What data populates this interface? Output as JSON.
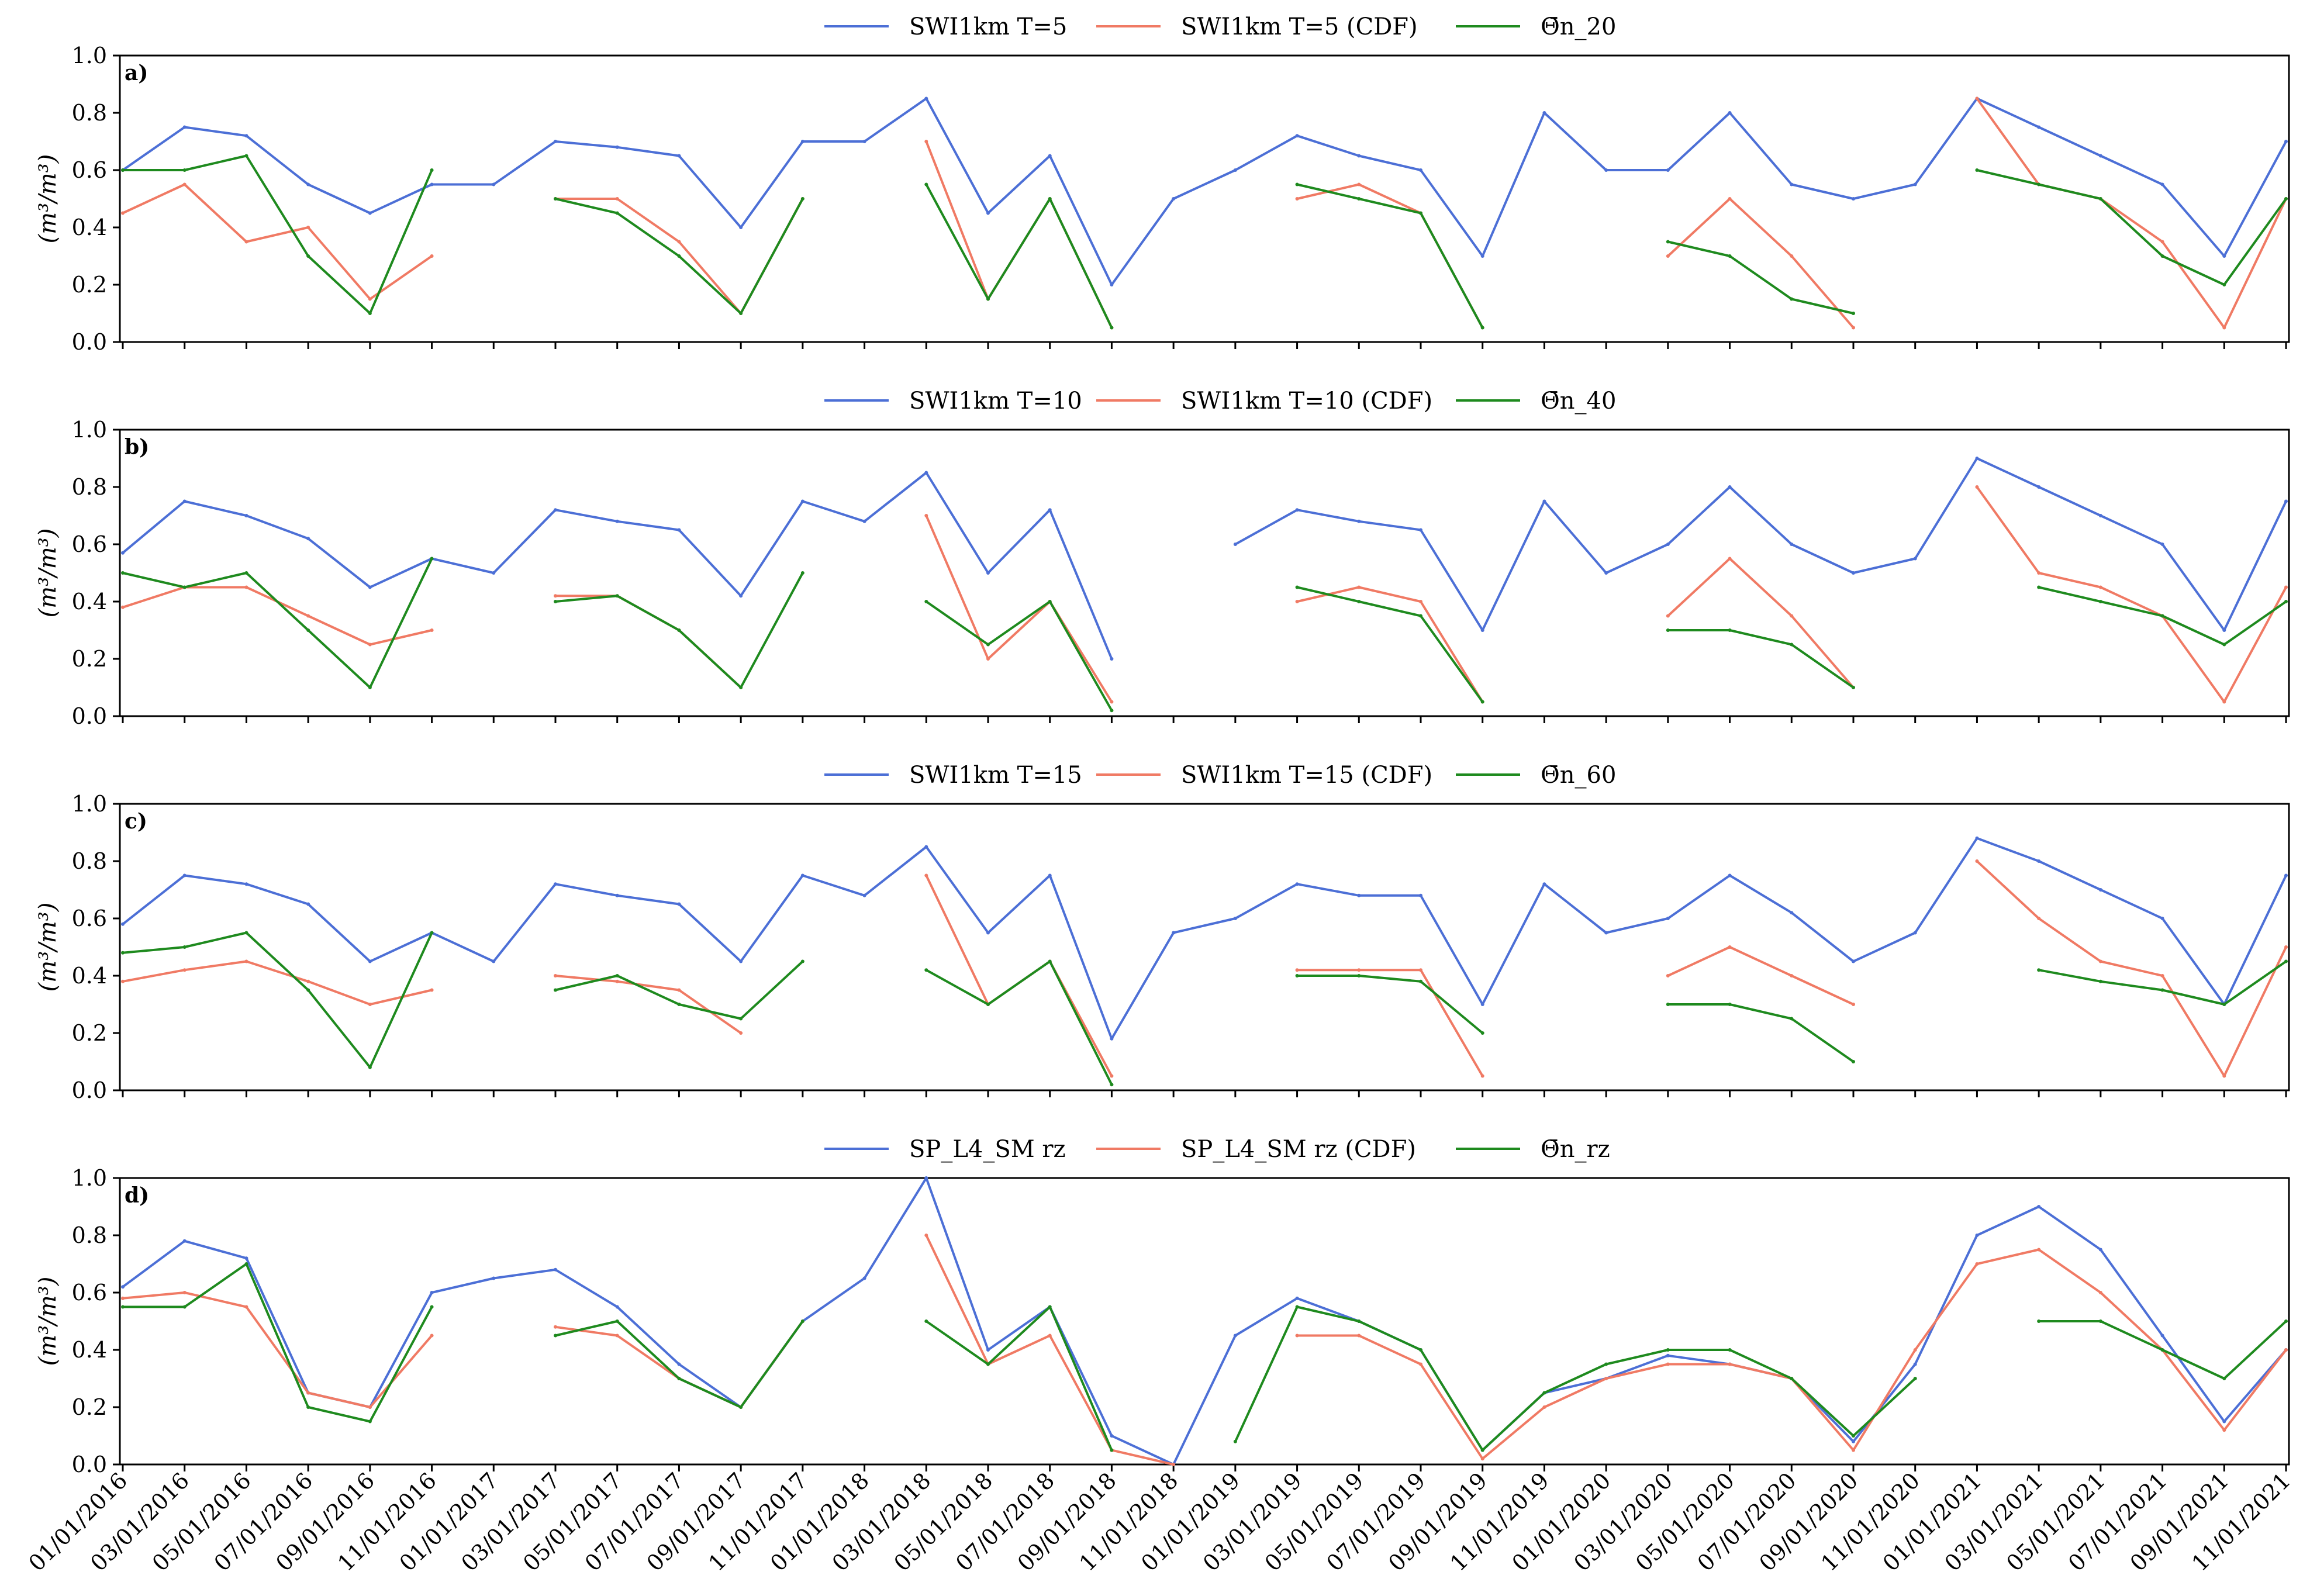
{
  "chart_data": [
    {
      "type": "line",
      "panel": "a)",
      "ylabel": "(m³/m³)",
      "ylim": [
        0.0,
        1.0
      ],
      "yticks": [
        "0.0",
        "0.2",
        "0.4",
        "0.6",
        "0.8",
        "1.0"
      ],
      "legend": [
        "SWI1km T=5",
        "SWI1km T=5 (CDF)",
        "Θ̄n_20"
      ],
      "x": [
        "2016-01",
        "2016-03",
        "2016-05",
        "2016-07",
        "2016-09",
        "2016-11",
        "2017-01",
        "2017-03",
        "2017-05",
        "2017-07",
        "2017-09",
        "2017-11",
        "2018-01",
        "2018-03",
        "2018-05",
        "2018-07",
        "2018-09",
        "2018-11",
        "2019-01",
        "2019-03",
        "2019-05",
        "2019-07",
        "2019-09",
        "2019-11",
        "2020-01",
        "2020-03",
        "2020-05",
        "2020-07",
        "2020-09",
        "2020-11",
        "2021-01",
        "2021-03",
        "2021-05",
        "2021-07",
        "2021-09",
        "2021-11"
      ],
      "series": [
        {
          "name": "SWI1km T=5",
          "color": "#4c6fd6",
          "values": [
            0.6,
            0.75,
            0.72,
            0.55,
            0.45,
            0.55,
            0.55,
            0.7,
            0.68,
            0.65,
            0.4,
            0.7,
            0.7,
            0.85,
            0.45,
            0.65,
            0.2,
            0.5,
            0.6,
            0.72,
            0.65,
            0.6,
            0.3,
            0.8,
            0.6,
            0.6,
            0.8,
            0.55,
            0.5,
            0.55,
            0.85,
            0.75,
            0.65,
            0.55,
            0.3,
            0.7
          ]
        },
        {
          "name": "SWI1km T=5 (CDF)",
          "color": "#f07a64",
          "values": [
            0.45,
            0.55,
            0.35,
            0.4,
            0.15,
            0.3,
            null,
            0.5,
            0.5,
            0.35,
            0.1,
            0.5,
            null,
            0.7,
            0.15,
            0.5,
            0.05,
            null,
            null,
            0.5,
            0.55,
            0.45,
            0.05,
            null,
            null,
            0.3,
            0.5,
            0.3,
            0.05,
            null,
            0.85,
            0.55,
            0.5,
            0.35,
            0.05,
            0.5
          ]
        },
        {
          "name": "Θ̄n_20",
          "color": "#1e8a1e",
          "values": [
            0.6,
            0.6,
            0.65,
            0.3,
            0.1,
            0.6,
            null,
            0.5,
            0.45,
            0.3,
            0.1,
            0.5,
            null,
            0.55,
            0.15,
            0.5,
            0.05,
            null,
            null,
            0.55,
            0.5,
            0.45,
            0.05,
            null,
            null,
            0.35,
            0.3,
            0.15,
            0.1,
            null,
            0.6,
            0.55,
            0.5,
            0.3,
            0.2,
            0.5
          ]
        }
      ]
    },
    {
      "type": "line",
      "panel": "b)",
      "ylabel": "(m³/m³)",
      "ylim": [
        0.0,
        1.0
      ],
      "yticks": [
        "0.0",
        "0.2",
        "0.4",
        "0.6",
        "0.8",
        "1.0"
      ],
      "legend": [
        "SWI1km T=10",
        "SWI1km T=10 (CDF)",
        "Θ̄n_40"
      ],
      "x": [
        "2016-01",
        "2016-03",
        "2016-05",
        "2016-07",
        "2016-09",
        "2016-11",
        "2017-01",
        "2017-03",
        "2017-05",
        "2017-07",
        "2017-09",
        "2017-11",
        "2018-01",
        "2018-03",
        "2018-05",
        "2018-07",
        "2018-09",
        "2018-11",
        "2019-01",
        "2019-03",
        "2019-05",
        "2019-07",
        "2019-09",
        "2019-11",
        "2020-01",
        "2020-03",
        "2020-05",
        "2020-07",
        "2020-09",
        "2020-11",
        "2021-01",
        "2021-03",
        "2021-05",
        "2021-07",
        "2021-09",
        "2021-11"
      ],
      "series": [
        {
          "name": "SWI1km T=10",
          "color": "#4c6fd6",
          "values": [
            0.57,
            0.75,
            0.7,
            0.62,
            0.45,
            0.55,
            0.5,
            0.72,
            0.68,
            0.65,
            0.42,
            0.75,
            0.68,
            0.85,
            0.5,
            0.72,
            0.2,
            null,
            0.6,
            0.72,
            0.68,
            0.65,
            0.3,
            0.75,
            0.5,
            0.6,
            0.8,
            0.6,
            0.5,
            0.55,
            0.9,
            0.8,
            0.7,
            0.6,
            0.3,
            0.75
          ]
        },
        {
          "name": "SWI1km T=10 (CDF)",
          "color": "#f07a64",
          "values": [
            0.38,
            0.45,
            0.45,
            0.35,
            0.25,
            0.3,
            null,
            0.42,
            0.42,
            0.3,
            0.1,
            null,
            null,
            0.7,
            0.2,
            0.4,
            0.05,
            null,
            null,
            0.4,
            0.45,
            0.4,
            0.05,
            null,
            null,
            0.35,
            0.55,
            0.35,
            0.1,
            null,
            0.8,
            0.5,
            0.45,
            0.35,
            0.05,
            0.45
          ]
        },
        {
          "name": "Θ̄n_40",
          "color": "#1e8a1e",
          "values": [
            0.5,
            0.45,
            0.5,
            0.3,
            0.1,
            0.55,
            null,
            0.4,
            0.42,
            0.3,
            0.1,
            0.5,
            null,
            0.4,
            0.25,
            0.4,
            0.02,
            null,
            null,
            0.45,
            0.4,
            0.35,
            0.05,
            null,
            null,
            0.3,
            0.3,
            0.25,
            0.1,
            null,
            null,
            0.45,
            0.4,
            0.35,
            0.25,
            0.4
          ]
        }
      ]
    },
    {
      "type": "line",
      "panel": "c)",
      "ylabel": "(m³/m³)",
      "ylim": [
        0.0,
        1.0
      ],
      "yticks": [
        "0.0",
        "0.2",
        "0.4",
        "0.6",
        "0.8",
        "1.0"
      ],
      "legend": [
        "SWI1km T=15",
        "SWI1km T=15 (CDF)",
        "Θ̄n_60"
      ],
      "x": [
        "2016-01",
        "2016-03",
        "2016-05",
        "2016-07",
        "2016-09",
        "2016-11",
        "2017-01",
        "2017-03",
        "2017-05",
        "2017-07",
        "2017-09",
        "2017-11",
        "2018-01",
        "2018-03",
        "2018-05",
        "2018-07",
        "2018-09",
        "2018-11",
        "2019-01",
        "2019-03",
        "2019-05",
        "2019-07",
        "2019-09",
        "2019-11",
        "2020-01",
        "2020-03",
        "2020-05",
        "2020-07",
        "2020-09",
        "2020-11",
        "2021-01",
        "2021-03",
        "2021-05",
        "2021-07",
        "2021-09",
        "2021-11"
      ],
      "series": [
        {
          "name": "SWI1km T=15",
          "color": "#4c6fd6",
          "values": [
            0.58,
            0.75,
            0.72,
            0.65,
            0.45,
            0.55,
            0.45,
            0.72,
            0.68,
            0.65,
            0.45,
            0.75,
            0.68,
            0.85,
            0.55,
            0.75,
            0.18,
            0.55,
            0.6,
            0.72,
            0.68,
            0.68,
            0.3,
            0.72,
            0.55,
            0.6,
            0.75,
            0.62,
            0.45,
            0.55,
            0.88,
            0.8,
            0.7,
            0.6,
            0.3,
            0.75
          ]
        },
        {
          "name": "SWI1km T=15 (CDF)",
          "color": "#f07a64",
          "values": [
            0.38,
            0.42,
            0.45,
            0.38,
            0.3,
            0.35,
            null,
            0.4,
            0.38,
            0.35,
            0.2,
            null,
            null,
            0.75,
            0.3,
            0.45,
            0.05,
            null,
            null,
            0.42,
            0.42,
            0.42,
            0.05,
            null,
            null,
            0.4,
            0.5,
            0.4,
            0.3,
            null,
            0.8,
            0.6,
            0.45,
            0.4,
            0.05,
            0.5
          ]
        },
        {
          "name": "Θ̄n_60",
          "color": "#1e8a1e",
          "values": [
            0.48,
            0.5,
            0.55,
            0.35,
            0.08,
            0.55,
            null,
            0.35,
            0.4,
            0.3,
            0.25,
            0.45,
            null,
            0.42,
            0.3,
            0.45,
            0.02,
            null,
            null,
            0.4,
            0.4,
            0.38,
            0.2,
            null,
            null,
            0.3,
            0.3,
            0.25,
            0.1,
            null,
            null,
            0.42,
            0.38,
            0.35,
            0.3,
            0.45
          ]
        }
      ]
    },
    {
      "type": "line",
      "panel": "d)",
      "ylabel": "(m³/m³)",
      "ylim": [
        0.0,
        1.0
      ],
      "yticks": [
        "0.0",
        "0.2",
        "0.4",
        "0.6",
        "0.8",
        "1.0"
      ],
      "legend": [
        "SP_L4_SM rz",
        "SP_L4_SM rz (CDF)",
        "Θ̄n_rz"
      ],
      "x": [
        "2016-01",
        "2016-03",
        "2016-05",
        "2016-07",
        "2016-09",
        "2016-11",
        "2017-01",
        "2017-03",
        "2017-05",
        "2017-07",
        "2017-09",
        "2017-11",
        "2018-01",
        "2018-03",
        "2018-05",
        "2018-07",
        "2018-09",
        "2018-11",
        "2019-01",
        "2019-03",
        "2019-05",
        "2019-07",
        "2019-09",
        "2019-11",
        "2020-01",
        "2020-03",
        "2020-05",
        "2020-07",
        "2020-09",
        "2020-11",
        "2021-01",
        "2021-03",
        "2021-05",
        "2021-07",
        "2021-09",
        "2021-11"
      ],
      "series": [
        {
          "name": "SP_L4_SM rz",
          "color": "#4c6fd6",
          "values": [
            0.62,
            0.78,
            0.72,
            0.25,
            0.2,
            0.6,
            0.65,
            0.68,
            0.55,
            0.35,
            0.2,
            0.5,
            0.65,
            1.0,
            0.4,
            0.55,
            0.1,
            0.0,
            0.45,
            0.58,
            0.5,
            0.4,
            0.05,
            0.25,
            0.3,
            0.38,
            0.35,
            0.3,
            0.08,
            0.35,
            0.8,
            0.9,
            0.75,
            0.45,
            0.15,
            0.4
          ]
        },
        {
          "name": "SP_L4_SM rz (CDF)",
          "color": "#f07a64",
          "values": [
            0.58,
            0.6,
            0.55,
            0.25,
            0.2,
            0.45,
            null,
            0.48,
            0.45,
            0.3,
            0.2,
            0.5,
            null,
            0.8,
            0.35,
            0.45,
            0.05,
            0.0,
            null,
            0.45,
            0.45,
            0.35,
            0.02,
            0.2,
            0.3,
            0.35,
            0.35,
            0.3,
            0.05,
            0.4,
            0.7,
            0.75,
            0.6,
            0.4,
            0.12,
            0.4
          ]
        },
        {
          "name": "Θ̄n_rz",
          "color": "#1e8a1e",
          "values": [
            0.55,
            0.55,
            0.7,
            0.2,
            0.15,
            0.55,
            null,
            0.45,
            0.5,
            0.3,
            0.2,
            0.5,
            null,
            0.5,
            0.35,
            0.55,
            0.05,
            null,
            0.08,
            0.55,
            0.5,
            0.4,
            0.05,
            0.25,
            0.35,
            0.4,
            0.4,
            0.3,
            0.1,
            0.3,
            null,
            0.5,
            0.5,
            0.4,
            0.3,
            0.5
          ]
        }
      ]
    }
  ],
  "xtick_labels": [
    "01/01/2016",
    "03/01/2016",
    "05/01/2016",
    "07/01/2016",
    "09/01/2016",
    "11/01/2016",
    "01/01/2017",
    "03/01/2017",
    "05/01/2017",
    "07/01/2017",
    "09/01/2017",
    "11/01/2017",
    "01/01/2018",
    "03/01/2018",
    "05/01/2018",
    "07/01/2018",
    "09/01/2018",
    "11/01/2018",
    "01/01/2019",
    "03/01/2019",
    "05/01/2019",
    "07/01/2019",
    "09/01/2019",
    "11/01/2019",
    "01/01/2020",
    "03/01/2020",
    "05/01/2020",
    "07/01/2020",
    "09/01/2020",
    "11/01/2020",
    "01/01/2021",
    "03/01/2021",
    "05/01/2021",
    "07/01/2021",
    "09/01/2021",
    "11/01/2021"
  ]
}
